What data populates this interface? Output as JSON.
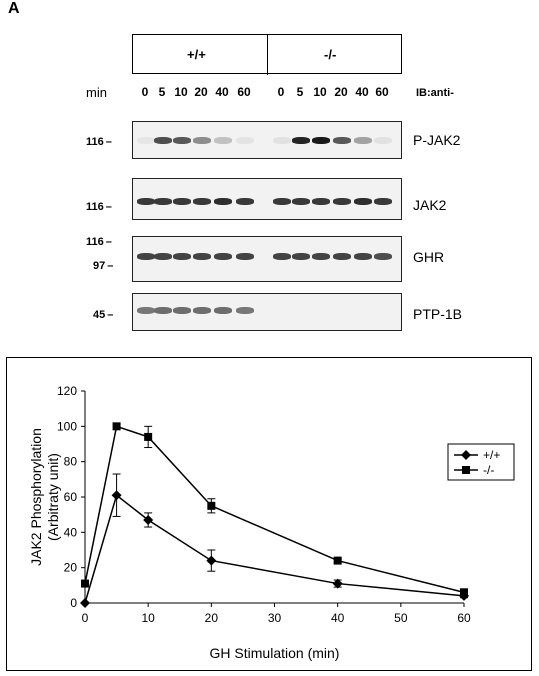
{
  "figure": {
    "panel_letter": "A",
    "genotypes": [
      "+/+",
      "-/-"
    ],
    "min_label": "min",
    "timepoints": [
      "0",
      "5",
      "10",
      "20",
      "40",
      "60",
      "0",
      "5",
      "10",
      "20",
      "40",
      "60"
    ],
    "ib_label": "IB:anti-",
    "blots": [
      {
        "label": "P-JAK2",
        "markers": [
          "116"
        ],
        "intensity": [
          0.03,
          0.75,
          0.7,
          0.45,
          0.2,
          0.04,
          0.05,
          0.95,
          1.0,
          0.7,
          0.35,
          0.05
        ]
      },
      {
        "label": "JAK2",
        "markers": [
          "116"
        ],
        "intensity": [
          0.85,
          0.85,
          0.85,
          0.85,
          0.9,
          0.85,
          0.85,
          0.85,
          0.85,
          0.85,
          0.9,
          0.85
        ]
      },
      {
        "label": "GHR",
        "markers": [
          "116",
          "97"
        ],
        "intensity": [
          0.8,
          0.8,
          0.8,
          0.8,
          0.8,
          0.8,
          0.8,
          0.8,
          0.8,
          0.8,
          0.8,
          0.75
        ]
      },
      {
        "label": "PTP-1B",
        "markers": [
          "45"
        ],
        "intensity": [
          0.55,
          0.6,
          0.6,
          0.6,
          0.6,
          0.55,
          0,
          0,
          0,
          0,
          0,
          0
        ]
      }
    ]
  },
  "chart_data": {
    "type": "line",
    "xlabel": "GH Stimulation (min)",
    "ylabel": "JAK2 Phosphorylation (Arbitraty unit)",
    "ylabel_lines": [
      "JAK2 Phosphorylation",
      "(Arbitraty unit)"
    ],
    "xlim": [
      0,
      60
    ],
    "ylim": [
      0,
      120
    ],
    "xticks": [
      0,
      10,
      20,
      30,
      40,
      50,
      60
    ],
    "yticks": [
      0,
      20,
      40,
      60,
      80,
      100,
      120
    ],
    "legend_position": "right",
    "series": [
      {
        "name": "+/+",
        "marker": "diamond",
        "x": [
          0,
          5,
          10,
          20,
          40,
          60
        ],
        "y": [
          0,
          61,
          47,
          24,
          11,
          4
        ],
        "err": [
          0,
          12,
          4,
          6,
          2,
          1
        ]
      },
      {
        "name": "-/-",
        "marker": "square",
        "x": [
          0,
          5,
          10,
          20,
          40,
          60
        ],
        "y": [
          11,
          100,
          94,
          55,
          24,
          6
        ],
        "err": [
          0,
          0,
          6,
          4,
          1,
          2
        ]
      }
    ]
  }
}
